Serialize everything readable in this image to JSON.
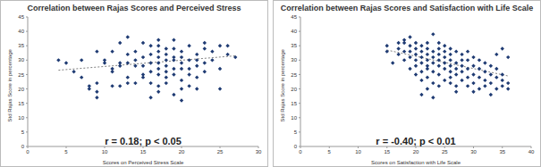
{
  "chart_data": [
    {
      "type": "scatter",
      "title": "Correlation between Rajas Scores and Perceived Stress",
      "x_label": "Scores on Perceived Stress Scale",
      "y_label": "Std Rajas Score in percentage",
      "annotation": "r = 0.18; p < 0.05",
      "color": "#1f3b73",
      "marker": "diamond",
      "xlim": [
        0,
        30
      ],
      "ylim": [
        0,
        45
      ],
      "xticks": [
        0,
        5,
        10,
        15,
        20,
        25,
        30
      ],
      "yticks": [
        0,
        5,
        10,
        15,
        20,
        25,
        30,
        35,
        40,
        45
      ],
      "x": [
        4,
        5,
        6,
        7,
        7,
        8,
        8,
        9,
        9,
        9,
        9,
        10,
        10,
        11,
        11,
        11,
        11,
        12,
        12,
        12,
        12,
        13,
        13,
        13,
        13,
        13,
        14,
        14,
        14,
        14,
        15,
        15,
        15,
        15,
        15,
        16,
        16,
        16,
        16,
        16,
        16,
        17,
        17,
        17,
        17,
        17,
        17,
        17,
        17,
        17,
        18,
        18,
        18,
        18,
        18,
        18,
        18,
        19,
        19,
        19,
        19,
        19,
        19,
        19,
        20,
        20,
        20,
        20,
        20,
        20,
        20,
        21,
        21,
        21,
        21,
        21,
        22,
        22,
        22,
        22,
        22,
        23,
        23,
        23,
        23,
        24,
        24,
        25,
        25,
        25,
        26,
        26,
        27
      ],
      "values": [
        30,
        29,
        26,
        24,
        30,
        20,
        21,
        17,
        19,
        22,
        33,
        29,
        30,
        21,
        26,
        33,
        27,
        21,
        28,
        29,
        36,
        22,
        29,
        32,
        24,
        38,
        28,
        30,
        33,
        22,
        25,
        31,
        36,
        28,
        24,
        29,
        32,
        26,
        35,
        17,
        22,
        25,
        27,
        29,
        31,
        33,
        35,
        37,
        21,
        19,
        26,
        28,
        30,
        32,
        34,
        24,
        22,
        30,
        27,
        25,
        31,
        34,
        18,
        37,
        23,
        29,
        33,
        31,
        27,
        16,
        20,
        27,
        30,
        35,
        25,
        21,
        32,
        30,
        28,
        20,
        24,
        29,
        26,
        36,
        34,
        30,
        33,
        35,
        20,
        27,
        35,
        32,
        31
      ],
      "trendline": {
        "x": [
          4,
          27
        ],
        "values": [
          26.5,
          31.5
        ],
        "color": "#808080",
        "line_style": "dotted"
      }
    },
    {
      "type": "scatter",
      "title": "Correlation between Rajas Scores and Satisfaction with Life Scale",
      "x_label": "Scores on Satisfaction with Life Scale",
      "y_label": "Std Rajas Score in percentage",
      "annotation": "r = -0.40; p < 0.01",
      "color": "#1f3b73",
      "marker": "diamond",
      "xlim": [
        0,
        40
      ],
      "ylim": [
        0,
        45
      ],
      "xticks": [
        0,
        5,
        10,
        15,
        20,
        25,
        30,
        35,
        40
      ],
      "yticks": [
        0,
        5,
        10,
        15,
        20,
        25,
        30,
        35,
        40,
        45
      ],
      "x": [
        15,
        15,
        16,
        17,
        17,
        17,
        18,
        18,
        18,
        18,
        19,
        19,
        19,
        19,
        19,
        20,
        20,
        20,
        20,
        20,
        20,
        21,
        21,
        21,
        21,
        21,
        21,
        21,
        22,
        22,
        22,
        22,
        22,
        22,
        22,
        22,
        23,
        23,
        23,
        23,
        23,
        23,
        23,
        24,
        24,
        24,
        24,
        24,
        24,
        24,
        25,
        25,
        25,
        25,
        25,
        25,
        26,
        26,
        26,
        26,
        26,
        26,
        26,
        27,
        27,
        27,
        27,
        27,
        27,
        28,
        28,
        28,
        28,
        28,
        29,
        29,
        29,
        29,
        29,
        30,
        30,
        30,
        30,
        30,
        31,
        31,
        31,
        31,
        32,
        32,
        32,
        32,
        33,
        33,
        33,
        33,
        34,
        34,
        34,
        34,
        35,
        35,
        35,
        35,
        36,
        36,
        36
      ],
      "values": [
        35,
        33,
        29,
        34,
        36,
        32,
        37,
        33,
        30,
        36,
        35,
        33,
        31,
        38,
        27,
        34,
        30,
        32,
        28,
        36,
        25,
        31,
        33,
        29,
        26,
        35,
        18,
        23,
        32,
        30,
        27,
        34,
        24,
        28,
        36,
        20,
        31,
        29,
        33,
        26,
        22,
        39,
        17,
        34,
        30,
        28,
        25,
        32,
        36,
        21,
        27,
        33,
        29,
        23,
        31,
        35,
        26,
        30,
        22,
        28,
        24,
        32,
        34,
        29,
        25,
        33,
        21,
        27,
        19,
        30,
        26,
        23,
        28,
        32,
        27,
        24,
        21,
        30,
        33,
        25,
        28,
        22,
        19,
        31,
        24,
        27,
        20,
        30,
        26,
        21,
        23,
        29,
        22,
        25,
        18,
        28,
        24,
        20,
        27,
        32,
        23,
        21,
        25,
        34,
        22,
        20,
        31
      ],
      "trendline": {
        "x": [
          15,
          36
        ],
        "values": [
          33.5,
          24.5
        ],
        "color": "#808080",
        "line_style": "dotted"
      }
    }
  ]
}
